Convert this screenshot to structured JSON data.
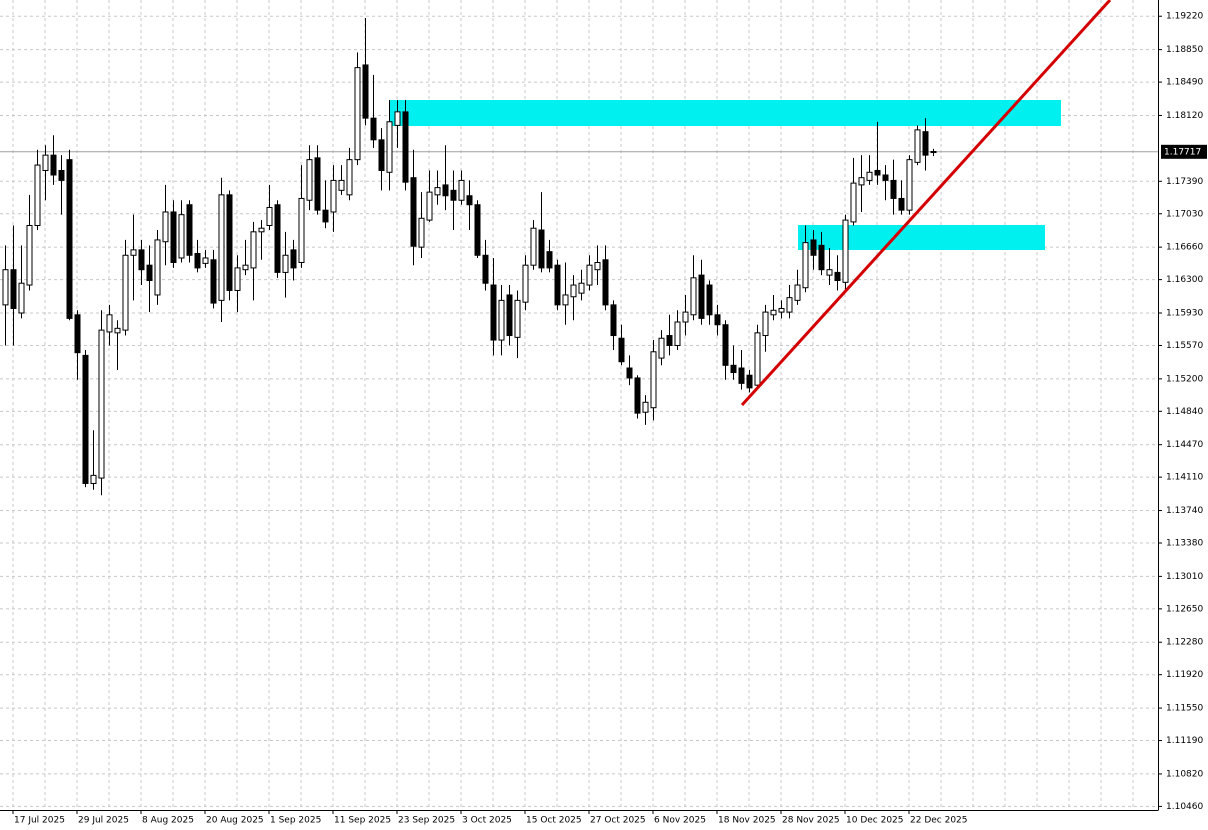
{
  "chart_data": {
    "type": "candlestick",
    "up_color": "#ffffff",
    "down_color": "#000000",
    "grid": true,
    "categories": [
      null,
      "17 Jul 2025",
      null,
      null,
      null,
      null,
      null,
      null,
      null,
      "29 Jul 2025",
      null,
      null,
      null,
      null,
      null,
      null,
      null,
      "8 Aug 2025",
      null,
      null,
      null,
      null,
      null,
      null,
      null,
      "20 Aug 2025",
      null,
      null,
      null,
      null,
      null,
      null,
      null,
      "1 Sep 2025",
      null,
      null,
      null,
      null,
      null,
      null,
      null,
      "11 Sep 2025",
      null,
      null,
      null,
      null,
      null,
      null,
      null,
      "23 Sep 2025",
      null,
      null,
      null,
      null,
      null,
      null,
      null,
      "3 Oct 2025",
      null,
      null,
      null,
      null,
      null,
      null,
      null,
      "15 Oct 2025",
      null,
      null,
      null,
      null,
      null,
      null,
      null,
      "27 Oct 2025",
      null,
      null,
      null,
      null,
      null,
      null,
      null,
      "6 Nov 2025",
      null,
      null,
      null,
      null,
      null,
      null,
      null,
      "18 Nov 2025",
      null,
      null,
      null,
      null,
      null,
      null,
      null,
      "28 Nov 2025",
      null,
      null,
      null,
      null,
      null,
      null,
      null,
      "10 Dec 2025",
      null,
      null,
      null,
      null,
      null,
      null,
      null,
      "22 Dec 2025",
      null,
      null,
      null
    ],
    "open": [
      1.1602,
      1.1641,
      1.1593,
      1.1624,
      1.169,
      1.1751,
      1.1768,
      1.1751,
      1.1763,
      1.1591,
      1.1546,
      1.1404,
      1.141,
      1.1572,
      1.1571,
      1.1574,
      1.1657,
      1.1663,
      1.1646,
      1.1613,
      1.1672,
      1.1705,
      1.1654,
      1.1713,
      1.1659,
      1.1648,
      1.1652,
      1.1607,
      1.1724,
      1.1618,
      1.1641,
      1.1643,
      1.1683,
      1.169,
      1.1713,
      1.1638,
      1.1663,
      1.1649,
      1.1718,
      1.1765,
      1.1707,
      1.1705,
      1.1729,
      1.1724,
      1.1763,
      1.1868,
      1.1809,
      1.1785,
      1.1749,
      1.1801,
      1.1816,
      1.1743,
      1.1666,
      1.1696,
      1.1724,
      1.1735,
      1.1729,
      1.1718,
      1.1723,
      1.1713,
      1.1657,
      1.1624,
      1.1563,
      1.1613,
      1.1566,
      1.1605,
      1.1646,
      1.1685,
      1.1661,
      1.1646,
      1.1602,
      1.1611,
      1.1615,
      1.1624,
      1.1641,
      1.1652,
      1.1602,
      1.1565,
      1.1532,
      1.1521,
      1.1483,
      1.1488,
      1.1543,
      1.1568,
      1.1557,
      1.1583,
      1.1591,
      1.1635,
      1.1624,
      1.1591,
      1.158,
      1.1535,
      1.1532,
      1.1524,
      1.1513,
      1.1568,
      1.1591,
      1.1594,
      1.1594,
      1.1607,
      1.1621,
      1.1674,
      1.1668,
      1.1635,
      1.1638,
      1.1627,
      1.1694,
      1.1735,
      1.174,
      1.1751,
      1.1746,
      1.174,
      1.172,
      1.1707,
      1.176,
      1.1794,
      1.1772
    ],
    "high": [
      1.1668,
      1.169,
      1.1668,
      1.1724,
      1.1774,
      1.1779,
      1.179,
      1.1768,
      1.1774,
      1.1596,
      1.1552,
      1.1463,
      1.1596,
      1.1602,
      1.1585,
      1.1674,
      1.1702,
      1.1674,
      1.1668,
      1.1685,
      1.1735,
      1.1718,
      1.1718,
      1.1718,
      1.1674,
      1.1663,
      1.1663,
      1.1743,
      1.1729,
      1.1657,
      1.1674,
      1.1694,
      1.1696,
      1.1735,
      1.1718,
      1.1683,
      1.1674,
      1.1757,
      1.1779,
      1.1779,
      1.174,
      1.1757,
      1.1757,
      1.1776,
      1.1882,
      1.192,
      1.1857,
      1.1798,
      1.1829,
      1.1829,
      1.1829,
      1.1774,
      1.1727,
      1.1751,
      1.1751,
      1.1779,
      1.1751,
      1.1751,
      1.174,
      1.1718,
      1.1674,
      1.1654,
      1.1624,
      1.1624,
      1.1618,
      1.1657,
      1.1696,
      1.1727,
      1.1674,
      1.1652,
      1.1649,
      1.1635,
      1.1641,
      1.1657,
      1.1668,
      1.1668,
      1.1607,
      1.158,
      1.1546,
      1.1524,
      1.1502,
      1.1563,
      1.1574,
      1.1591,
      1.1596,
      1.1613,
      1.1657,
      1.1652,
      1.1629,
      1.1602,
      1.1585,
      1.1557,
      1.1552,
      1.153,
      1.158,
      1.1602,
      1.1613,
      1.1607,
      1.1624,
      1.1641,
      1.169,
      1.1685,
      1.1683,
      1.1665,
      1.1657,
      1.1702,
      1.1765,
      1.1768,
      1.1768,
      1.1805,
      1.1757,
      1.1763,
      1.174,
      1.1768,
      1.1801,
      1.1809,
      1.1775
    ],
    "low": [
      1.1557,
      1.1557,
      1.1587,
      1.1618,
      1.1685,
      1.1718,
      1.1735,
      1.1702,
      1.1585,
      1.1519,
      1.14,
      1.1397,
      1.1391,
      1.1557,
      1.153,
      1.1568,
      1.1607,
      1.1624,
      1.1594,
      1.1602,
      1.1646,
      1.1643,
      1.1649,
      1.1649,
      1.1638,
      1.1643,
      1.1598,
      1.1583,
      1.1607,
      1.1594,
      1.1635,
      1.1607,
      1.1652,
      1.1685,
      1.1632,
      1.161,
      1.1629,
      1.1643,
      1.1707,
      1.1702,
      1.1687,
      1.1683,
      1.1724,
      1.1718,
      1.1757,
      1.1801,
      1.1776,
      1.1729,
      1.1729,
      1.1776,
      1.1729,
      1.1646,
      1.1654,
      1.1694,
      1.1713,
      1.1707,
      1.1685,
      1.1713,
      1.1685,
      1.1654,
      1.1618,
      1.1546,
      1.1546,
      1.1557,
      1.1543,
      1.1596,
      1.1641,
      1.1638,
      1.1638,
      1.1596,
      1.158,
      1.1585,
      1.1607,
      1.1618,
      1.1624,
      1.1596,
      1.1552,
      1.1535,
      1.1513,
      1.1476,
      1.1469,
      1.1474,
      1.1535,
      1.1546,
      1.1552,
      1.1568,
      1.1585,
      1.158,
      1.158,
      1.1568,
      1.1519,
      1.1519,
      1.1508,
      1.1505,
      1.1508,
      1.155,
      1.1585,
      1.1587,
      1.1587,
      1.1602,
      1.1616,
      1.1641,
      1.1635,
      1.1624,
      1.1618,
      1.1618,
      1.169,
      1.1705,
      1.1735,
      1.1735,
      1.1718,
      1.1702,
      1.1702,
      1.1702,
      1.1757,
      1.1751,
      1.1767
    ],
    "close": [
      1.1641,
      1.1598,
      1.1626,
      1.169,
      1.1757,
      1.1768,
      1.1746,
      1.174,
      1.1587,
      1.1549,
      1.1404,
      1.1413,
      1.1574,
      1.1591,
      1.1576,
      1.1657,
      1.1663,
      1.1641,
      1.1629,
      1.1674,
      1.1705,
      1.1649,
      1.1702,
      1.1657,
      1.1643,
      1.1654,
      1.1604,
      1.1724,
      1.1618,
      1.1643,
      1.1646,
      1.1683,
      1.1687,
      1.171,
      1.1638,
      1.1657,
      1.1643,
      1.172,
      1.1763,
      1.1707,
      1.1694,
      1.174,
      1.174,
      1.1763,
      1.1865,
      1.1809,
      1.1785,
      1.1751,
      1.1805,
      1.1816,
      1.1738,
      1.1667,
      1.1698,
      1.1727,
      1.1732,
      1.1723,
      1.1718,
      1.174,
      1.1713,
      1.1657,
      1.1626,
      1.1563,
      1.1607,
      1.1568,
      1.1607,
      1.1646,
      1.1687,
      1.1643,
      1.1643,
      1.1602,
      1.1613,
      1.1624,
      1.1626,
      1.1646,
      1.1649,
      1.1602,
      1.1568,
      1.1539,
      1.1521,
      1.1482,
      1.1494,
      1.155,
      1.1565,
      1.1557,
      1.1583,
      1.1594,
      1.1632,
      1.1587,
      1.1591,
      1.158,
      1.1535,
      1.1527,
      1.1515,
      1.151,
      1.1571,
      1.1594,
      1.1596,
      1.1598,
      1.161,
      1.1624,
      1.1671,
      1.1657,
      1.1641,
      1.1641,
      1.1629,
      1.1696,
      1.1737,
      1.1743,
      1.1749,
      1.1746,
      1.174,
      1.172,
      1.1707,
      1.1763,
      1.1796,
      1.1768,
      1.17717
    ],
    "ylim": [
      1.1042,
      1.194
    ],
    "yticks": [
      {
        "value": 1.1922,
        "label": "1.19220"
      },
      {
        "value": 1.1885,
        "label": "1.18850"
      },
      {
        "value": 1.1849,
        "label": "1.18490"
      },
      {
        "value": 1.1812,
        "label": "1.18120"
      },
      {
        "value": 1.1739,
        "label": "1.17390"
      },
      {
        "value": 1.1703,
        "label": "1.17030"
      },
      {
        "value": 1.1666,
        "label": "1.16660"
      },
      {
        "value": 1.163,
        "label": "1.16300"
      },
      {
        "value": 1.1593,
        "label": "1.15930"
      },
      {
        "value": 1.1557,
        "label": "1.15570"
      },
      {
        "value": 1.152,
        "label": "1.15200"
      },
      {
        "value": 1.1484,
        "label": "1.14840"
      },
      {
        "value": 1.1447,
        "label": "1.14470"
      },
      {
        "value": 1.1411,
        "label": "1.14110"
      },
      {
        "value": 1.1374,
        "label": "1.13740"
      },
      {
        "value": 1.1338,
        "label": "1.13380"
      },
      {
        "value": 1.1301,
        "label": "1.13010"
      },
      {
        "value": 1.1265,
        "label": "1.12650"
      },
      {
        "value": 1.1228,
        "label": "1.12280"
      },
      {
        "value": 1.1192,
        "label": "1.11920"
      },
      {
        "value": 1.1155,
        "label": "1.11550"
      },
      {
        "value": 1.1119,
        "label": "1.11190"
      },
      {
        "value": 1.1082,
        "label": "1.10820"
      },
      {
        "value": 1.1046,
        "label": "1.10460"
      }
    ]
  }
}
